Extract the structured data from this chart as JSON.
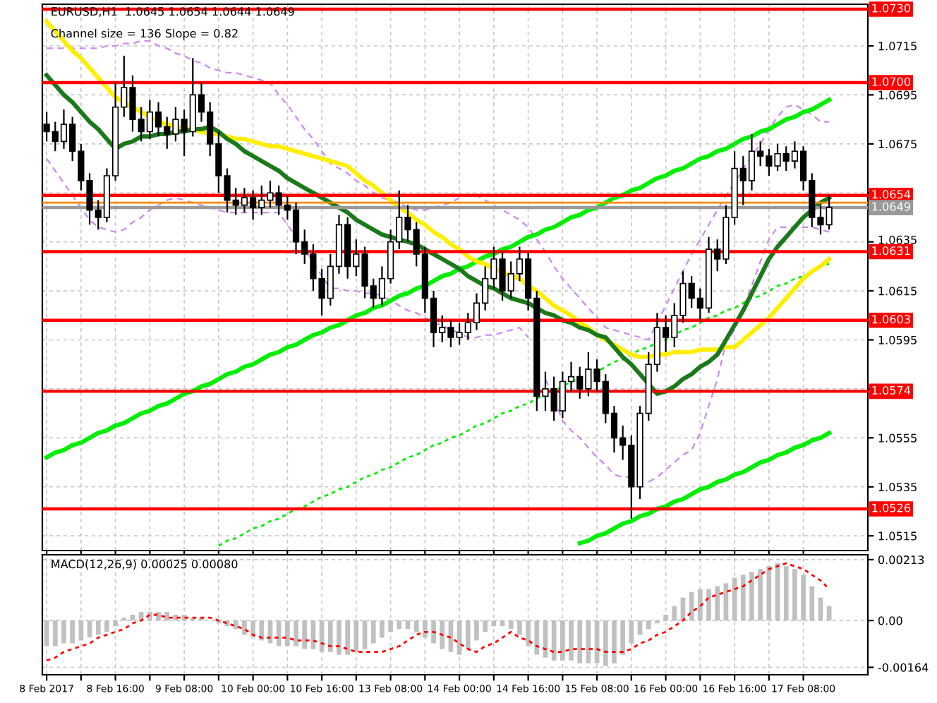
{
  "chart_data": [
    {
      "type": "candlestick",
      "title": "EURUSD,H1  1.0645 1.0654 1.0644 1.0649",
      "annotations": [
        "Channel size = 136 Slope = 0.82"
      ],
      "categories": [
        null,
        null,
        null,
        null,
        null,
        null,
        null,
        null,
        null,
        null,
        null,
        null,
        null,
        null,
        null,
        null,
        null,
        null,
        null,
        null,
        null,
        null,
        null,
        null,
        null,
        null,
        null,
        null,
        null,
        null,
        null,
        null,
        null,
        null,
        null,
        null,
        null,
        null,
        null,
        null,
        null,
        null,
        null,
        null,
        null,
        null,
        null,
        null,
        null,
        null,
        null,
        null,
        null,
        null,
        null,
        null,
        null,
        null,
        null,
        null,
        null,
        null,
        null,
        null,
        null,
        null,
        null,
        null,
        null,
        null,
        null,
        null,
        null,
        null,
        null,
        null,
        null,
        null,
        null,
        null,
        null,
        null,
        null,
        null,
        null,
        null,
        null,
        null,
        null,
        null,
        null,
        null
      ],
      "ohlc": [
        [
          1.0683,
          1.0688,
          1.0676,
          1.068
        ],
        [
          1.068,
          1.0684,
          1.0672,
          1.0676
        ],
        [
          1.0676,
          1.0689,
          1.0673,
          1.0683
        ],
        [
          1.0683,
          1.0686,
          1.0668,
          1.0672
        ],
        [
          1.0672,
          1.0675,
          1.0656,
          1.066
        ],
        [
          1.066,
          1.0663,
          1.0642,
          1.0648
        ],
        [
          1.0648,
          1.0652,
          1.064,
          1.0645
        ],
        [
          1.0645,
          1.0665,
          1.0643,
          1.0662
        ],
        [
          1.0662,
          1.07,
          1.066,
          1.069
        ],
        [
          1.069,
          1.0711,
          1.0686,
          1.0698
        ],
        [
          1.0698,
          1.0703,
          1.068,
          1.0685
        ],
        [
          1.0685,
          1.069,
          1.0676,
          1.068
        ],
        [
          1.068,
          1.0693,
          1.0677,
          1.0688
        ],
        [
          1.0688,
          1.0692,
          1.0678,
          1.0682
        ],
        [
          1.0682,
          1.0686,
          1.0673,
          1.0679
        ],
        [
          1.0679,
          1.069,
          1.0676,
          1.0685
        ],
        [
          1.0685,
          1.0689,
          1.067,
          1.068
        ],
        [
          1.068,
          1.071,
          1.0678,
          1.0695
        ],
        [
          1.0695,
          1.07,
          1.0684,
          1.0688
        ],
        [
          1.0688,
          1.0692,
          1.067,
          1.0675
        ],
        [
          1.0675,
          1.068,
          1.0655,
          1.0662
        ],
        [
          1.0662,
          1.0665,
          1.0647,
          1.0652
        ],
        [
          1.0652,
          1.0657,
          1.0646,
          1.065
        ],
        [
          1.065,
          1.0657,
          1.0647,
          1.0653
        ],
        [
          1.0653,
          1.0656,
          1.0644,
          1.0649
        ],
        [
          1.0649,
          1.0658,
          1.0646,
          1.0652
        ],
        [
          1.0652,
          1.066,
          1.0649,
          1.0655
        ],
        [
          1.0655,
          1.0658,
          1.0646,
          1.065
        ],
        [
          1.065,
          1.0654,
          1.0644,
          1.0648
        ],
        [
          1.0648,
          1.0651,
          1.063,
          1.0635
        ],
        [
          1.0635,
          1.064,
          1.0626,
          1.063
        ],
        [
          1.063,
          1.0634,
          1.0615,
          1.062
        ],
        [
          1.062,
          1.0624,
          1.0605,
          1.0612
        ],
        [
          1.0612,
          1.063,
          1.0609,
          1.0625
        ],
        [
          1.0625,
          1.0646,
          1.0622,
          1.0642
        ],
        [
          1.0642,
          1.0645,
          1.062,
          1.0625
        ],
        [
          1.0625,
          1.0636,
          1.0621,
          1.063
        ],
        [
          1.063,
          1.0633,
          1.0612,
          1.0617
        ],
        [
          1.0617,
          1.062,
          1.0608,
          1.0612
        ],
        [
          1.0612,
          1.0625,
          1.0609,
          1.062
        ],
        [
          1.062,
          1.064,
          1.0618,
          1.0635
        ],
        [
          1.0635,
          1.0656,
          1.0632,
          1.0645
        ],
        [
          1.0645,
          1.065,
          1.0635,
          1.064
        ],
        [
          1.064,
          1.0643,
          1.0625,
          1.063
        ],
        [
          1.063,
          1.0633,
          1.0606,
          1.0612
        ],
        [
          1.0612,
          1.0615,
          1.0592,
          1.0598
        ],
        [
          1.0598,
          1.0605,
          1.0594,
          1.06
        ],
        [
          1.06,
          1.0603,
          1.0592,
          1.0596
        ],
        [
          1.0596,
          1.0602,
          1.0593,
          1.0598
        ],
        [
          1.0598,
          1.0606,
          1.0595,
          1.0602
        ],
        [
          1.0602,
          1.0614,
          1.0599,
          1.061
        ],
        [
          1.061,
          1.0625,
          1.0607,
          1.062
        ],
        [
          1.062,
          1.0633,
          1.0616,
          1.0628
        ],
        [
          1.0628,
          1.0631,
          1.0611,
          1.0615
        ],
        [
          1.0615,
          1.0627,
          1.0612,
          1.0622
        ],
        [
          1.0622,
          1.0633,
          1.0619,
          1.0628
        ],
        [
          1.0628,
          1.0631,
          1.0607,
          1.0612
        ],
        [
          1.0612,
          1.0615,
          1.0566,
          1.0572
        ],
        [
          1.0572,
          1.0582,
          1.0566,
          1.0575
        ],
        [
          1.0575,
          1.058,
          1.0562,
          1.0566
        ],
        [
          1.0566,
          1.0582,
          1.0563,
          1.0578
        ],
        [
          1.0578,
          1.0586,
          1.0574,
          1.058
        ],
        [
          1.058,
          1.0584,
          1.0571,
          1.0575
        ],
        [
          1.0575,
          1.059,
          1.0572,
          1.0583
        ],
        [
          1.0583,
          1.0587,
          1.0574,
          1.0578
        ],
        [
          1.0578,
          1.0581,
          1.0561,
          1.0565
        ],
        [
          1.0565,
          1.0568,
          1.0549,
          1.0555
        ],
        [
          1.0555,
          1.056,
          1.0546,
          1.0552
        ],
        [
          1.0552,
          1.0556,
          1.0522,
          1.0535
        ],
        [
          1.0535,
          1.0568,
          1.053,
          1.0565
        ],
        [
          1.0565,
          1.059,
          1.0562,
          1.0585
        ],
        [
          1.0585,
          1.0606,
          1.0582,
          1.06
        ],
        [
          1.06,
          1.0605,
          1.059,
          1.0596
        ],
        [
          1.0596,
          1.061,
          1.0592,
          1.0605
        ],
        [
          1.0605,
          1.0623,
          1.0602,
          1.0618
        ],
        [
          1.0618,
          1.0621,
          1.0608,
          1.0612
        ],
        [
          1.0612,
          1.0616,
          1.0603,
          1.0608
        ],
        [
          1.0608,
          1.0637,
          1.0606,
          1.0632
        ],
        [
          1.0632,
          1.0636,
          1.0623,
          1.0628
        ],
        [
          1.0628,
          1.065,
          1.0626,
          1.0645
        ],
        [
          1.0645,
          1.0672,
          1.0642,
          1.0665
        ],
        [
          1.0665,
          1.067,
          1.065,
          1.066
        ],
        [
          1.066,
          1.0679,
          1.0656,
          1.0672
        ],
        [
          1.0672,
          1.0676,
          1.0666,
          1.067
        ],
        [
          1.067,
          1.0673,
          1.0662,
          1.0666
        ],
        [
          1.0666,
          1.0675,
          1.0664,
          1.0671
        ],
        [
          1.0671,
          1.0674,
          1.0664,
          1.0668
        ],
        [
          1.0668,
          1.0676,
          1.0665,
          1.0672
        ],
        [
          1.0672,
          1.0674,
          1.0656,
          1.066
        ],
        [
          1.066,
          1.0663,
          1.0641,
          1.0645
        ],
        [
          1.0645,
          1.065,
          1.0638,
          1.0642
        ],
        [
          1.0642,
          1.0654,
          1.064,
          1.0649
        ]
      ],
      "series": [
        {
          "type": "line",
          "color": "#cc88ee",
          "line_style": "dashed",
          "values": [
            1.0714,
            1.0714,
            1.0714,
            1.0714,
            1.0714,
            1.0714,
            1.0714,
            1.0715,
            1.0715,
            1.0716,
            1.0716,
            1.0717,
            1.0717,
            1.0715,
            1.0714,
            1.0712,
            1.0711,
            1.0709,
            1.0708,
            1.0706,
            1.0705,
            1.0704,
            1.0704,
            1.0703,
            1.0702,
            1.0701,
            1.07,
            1.0695,
            1.0691,
            1.0686,
            1.0681,
            1.0677,
            1.0672,
            1.0667,
            1.0665,
            1.0663,
            1.066,
            1.0658,
            1.0655,
            1.0653,
            1.0652,
            1.0651,
            1.0649,
            1.0648,
            1.0648,
            1.0649,
            1.065,
            1.0651,
            1.0653,
            1.0654,
            1.0654,
            1.0652,
            1.065,
            1.0648,
            1.0646,
            1.0644,
            1.0641,
            1.0636,
            1.0631,
            1.0625,
            1.062,
            1.0616,
            1.0612,
            1.0608,
            1.0604,
            1.06,
            1.0599,
            1.0598,
            1.0597,
            1.0596,
            1.0595,
            1.0602,
            1.0609,
            1.0616,
            1.0623,
            1.063,
            1.0636,
            1.0642,
            1.0648,
            1.0654,
            1.0659,
            1.0665,
            1.067,
            1.0675,
            1.0681,
            1.0686,
            1.069,
            1.0691,
            1.0689,
            1.0687,
            1.0684,
            1.0684
          ]
        },
        {
          "type": "line",
          "color": "#cc88ee",
          "line_style": "dashed",
          "values": [
            1.0669,
            1.0664,
            1.0659,
            1.0654,
            1.0649,
            1.0644,
            1.0641,
            1.064,
            1.0639,
            1.064,
            1.0643,
            1.0645,
            1.0648,
            1.065,
            1.0652,
            1.0653,
            1.0652,
            1.0651,
            1.065,
            1.0649,
            1.0648,
            1.0647,
            1.0647,
            1.0647,
            1.0647,
            1.0647,
            1.0647,
            1.0647,
            1.0642,
            1.0637,
            1.0632,
            1.0627,
            1.0621,
            1.0616,
            1.0616,
            1.0615,
            1.0615,
            1.0614,
            1.0614,
            1.0613,
            1.0611,
            1.0609,
            1.0607,
            1.0606,
            1.0604,
            1.0602,
            1.0601,
            1.0599,
            1.0598,
            1.0596,
            1.0596,
            1.0597,
            1.0597,
            1.0598,
            1.0599,
            1.06,
            1.0596,
            null,
            1.0579,
            1.0571,
            1.0562,
            1.0558,
            1.0555,
            1.0551,
            1.0547,
            1.0544,
            1.054,
            1.0539,
            1.0539,
            null,
            1.0537,
            1.0539,
            1.0542,
            1.0545,
            1.0548,
            1.055,
            1.0557,
            1.0568,
            1.0579,
            1.0594,
            1.0599,
            1.0608,
            1.0617,
            1.0627,
            1.0636,
            1.0641,
            1.0641,
            1.0641,
            1.0641,
            1.0641,
            1.064,
            1.0639
          ]
        },
        {
          "type": "line",
          "color": "#00ee00",
          "line_style": "solid",
          "values": [
            1.0547,
            1.0549,
            1.055,
            1.0552,
            1.0553,
            1.0555,
            1.0557,
            1.0558,
            1.056,
            1.0561,
            1.0563,
            1.0565,
            1.0566,
            1.0568,
            1.0569,
            1.0571,
            1.0573,
            1.0574,
            1.0576,
            1.0577,
            1.0579,
            1.0581,
            1.0582,
            1.0584,
            1.0585,
            1.0587,
            1.0589,
            1.059,
            1.0592,
            1.0593,
            1.0595,
            1.0597,
            1.0598,
            1.06,
            1.0601,
            1.0603,
            1.0605,
            1.0606,
            1.0608,
            1.0609,
            1.0611,
            1.0613,
            1.0614,
            1.0616,
            1.0617,
            1.0619,
            1.0621,
            1.0622,
            1.0624,
            1.0625,
            1.0627,
            1.0629,
            1.063,
            1.0632,
            1.0633,
            1.0635,
            1.0637,
            1.0638,
            1.064,
            1.0641,
            1.0643,
            1.0645,
            1.0646,
            1.0648,
            1.0649,
            1.0651,
            1.0653,
            1.0654,
            1.0656,
            1.0657,
            1.0659,
            1.0661,
            1.0662,
            1.0664,
            1.0665,
            1.0667,
            1.0669,
            1.067,
            1.0672,
            1.0673,
            1.0675,
            1.0677,
            1.0678,
            1.068,
            1.0681,
            1.0683,
            1.0685,
            1.0686,
            1.0688,
            1.0689,
            1.0691,
            1.0693
          ]
        },
        {
          "type": "line",
          "color": "#00ee00",
          "line_style": "dotted",
          "values": [
            null,
            null,
            null,
            null,
            null,
            null,
            null,
            null,
            null,
            null,
            null,
            null,
            null,
            null,
            null,
            null,
            null,
            null,
            null,
            null,
            1.0511,
            1.0513,
            1.0514,
            1.0516,
            1.0518,
            1.0519,
            1.0521,
            1.0522,
            1.0524,
            1.0526,
            1.0527,
            1.0529,
            1.0531,
            1.0532,
            1.0534,
            1.0535,
            1.0537,
            1.0539,
            1.054,
            1.0542,
            1.0543,
            1.0545,
            1.0547,
            1.0548,
            1.055,
            1.0552,
            1.0553,
            1.0555,
            1.0556,
            1.0558,
            1.056,
            1.0561,
            1.0563,
            1.0565,
            1.0566,
            1.0568,
            1.0569,
            1.0571,
            1.0573,
            1.0574,
            1.0576,
            1.0578,
            1.0579,
            1.0581,
            1.0582,
            1.0584,
            1.0586,
            1.0587,
            1.0589,
            1.0591,
            1.0592,
            1.0594,
            1.0595,
            1.0597,
            1.0599,
            1.06,
            1.0602,
            1.0604,
            1.0605,
            1.0607,
            1.0608,
            1.061,
            1.0612,
            1.0613,
            1.0615,
            1.0617,
            1.0618,
            1.062,
            1.0621,
            1.0623,
            1.0625,
            1.0626
          ]
        },
        {
          "type": "line",
          "color": "#00ee00",
          "line_style": "solid",
          "values": [
            null,
            null,
            null,
            null,
            null,
            null,
            null,
            null,
            null,
            null,
            null,
            null,
            null,
            null,
            null,
            null,
            null,
            null,
            null,
            null,
            null,
            null,
            null,
            null,
            null,
            null,
            null,
            null,
            null,
            null,
            null,
            null,
            null,
            null,
            null,
            null,
            null,
            null,
            null,
            null,
            null,
            null,
            null,
            null,
            null,
            null,
            null,
            null,
            null,
            null,
            null,
            null,
            null,
            null,
            null,
            null,
            null,
            null,
            null,
            null,
            null,
            null,
            1.0512,
            1.0513,
            1.0515,
            1.0516,
            1.0518,
            1.052,
            1.0521,
            1.0523,
            1.0524,
            1.0526,
            1.0527,
            1.0529,
            1.053,
            1.0532,
            1.0534,
            1.0535,
            1.0537,
            1.0538,
            1.054,
            1.0541,
            1.0543,
            1.0545,
            1.0546,
            1.0548,
            1.0549,
            1.0551,
            1.0552,
            1.0554,
            1.0555,
            1.0557
          ]
        },
        {
          "type": "line",
          "color": "#ffee00",
          "line_style": "solid",
          "values": [
            1.0725,
            1.0721,
            1.0717,
            1.0713,
            1.071,
            1.0706,
            1.0702,
            1.0698,
            1.0694,
            1.0692,
            1.069,
            1.0688,
            1.0686,
            1.0684,
            1.0683,
            1.0682,
            1.0681,
            1.0681,
            1.068,
            1.0679,
            1.0679,
            1.0678,
            1.0677,
            1.0677,
            1.0676,
            1.0675,
            1.0674,
            1.0674,
            1.0673,
            1.0672,
            1.0671,
            1.067,
            1.0669,
            1.0668,
            1.0667,
            1.0666,
            1.0663,
            1.066,
            1.0658,
            1.0655,
            1.0652,
            1.0649,
            1.0647,
            1.0644,
            1.0642,
            1.0639,
            1.0637,
            1.0634,
            1.0632,
            1.0629,
            1.0627,
            1.0626,
            1.0624,
            1.0623,
            1.0621,
            1.062,
            1.0617,
            1.0615,
            1.0612,
            1.0609,
            1.0607,
            1.0605,
            1.0602,
            1.06,
            1.0597,
            1.0595,
            1.0593,
            1.0591,
            1.0589,
            1.0588,
            1.0588,
            1.0589,
            1.0589,
            1.059,
            1.059,
            1.059,
            1.0591,
            1.0591,
            1.0591,
            1.0592,
            1.0592,
            1.0595,
            1.0598,
            1.0601,
            1.0604,
            1.0608,
            1.0612,
            1.0616,
            1.062,
            1.0623,
            1.0625,
            1.0628
          ]
        },
        {
          "type": "line",
          "color": "#1a7a1a",
          "line_style": "solid",
          "values": [
            1.0703,
            1.0699,
            1.0695,
            1.0692,
            1.0688,
            1.0684,
            1.0681,
            1.0677,
            1.0673,
            1.0675,
            1.0676,
            1.0678,
            1.0678,
            1.0679,
            1.0679,
            1.068,
            1.068,
            1.0681,
            1.0681,
            1.0682,
            1.068,
            1.0677,
            1.0675,
            1.0672,
            1.067,
            1.0668,
            1.0666,
            1.0664,
            1.0661,
            1.0659,
            1.0657,
            1.0655,
            1.0653,
            1.0651,
            1.0649,
            1.0647,
            1.0644,
            1.0642,
            1.064,
            1.0638,
            1.0637,
            1.0636,
            1.0635,
            1.0634,
            1.0632,
            1.063,
            1.0628,
            1.0626,
            1.0624,
            1.0621,
            1.0619,
            1.0617,
            1.0616,
            1.0614,
            1.0612,
            1.0611,
            1.061,
            1.0608,
            1.0606,
            1.0605,
            1.0603,
            1.0602,
            1.06,
            1.0599,
            1.0597,
            1.0596,
            1.0592,
            1.0588,
            1.0585,
            1.0581,
            1.0577,
            1.0573,
            1.0574,
            1.0576,
            1.0579,
            1.0581,
            1.0584,
            1.0586,
            1.0589,
            1.0595,
            1.0601,
            1.0607,
            1.0614,
            1.0621,
            1.0628,
            1.0633,
            1.0637,
            1.0641,
            1.0645,
            1.0648,
            1.0651,
            1.0653
          ]
        }
      ],
      "ylim": [
        1.0509,
        1.0732
      ],
      "yticks": [
        1.0515,
        1.0535,
        1.0555,
        {
          "value": 1.0575,
          "label": null
        },
        1.0595,
        1.0615,
        1.0635,
        {
          "value": 1.0655,
          "label": null
        },
        1.0675,
        1.0695,
        1.0715
      ],
      "ref_lines": [
        {
          "axis": "y",
          "value": 1.073,
          "label": "1.0730",
          "color": "#ff0000"
        },
        {
          "axis": "y",
          "value": 1.07,
          "label": "1.0700",
          "color": "#ff0000"
        },
        {
          "axis": "y",
          "value": 1.0654,
          "label": "1.0654",
          "color": "#ff0000"
        },
        {
          "axis": "y",
          "value": 1.0651,
          "color": "#ff8c00"
        },
        {
          "axis": "y",
          "value": 1.0649,
          "label": "1.0649",
          "color": "#999999"
        },
        {
          "axis": "y",
          "value": 1.0631,
          "label": "1.0631",
          "color": "#ff0000"
        },
        {
          "axis": "y",
          "value": 1.0603,
          "label": "1.0603",
          "color": "#ff0000"
        },
        {
          "axis": "y",
          "value": 1.0574,
          "label": "1.0574",
          "color": "#ff0000"
        },
        {
          "axis": "y",
          "value": 1.0526,
          "label": "1.0526",
          "color": "#ff0000"
        }
      ],
      "grid": true
    },
    {
      "type": "bar",
      "annotations": [
        "MACD(12,26,9) 0.00025 0.00080"
      ],
      "categories": [
        "8 Feb 2017",
        null,
        null,
        null,
        null,
        null,
        null,
        null,
        "8 Feb 16:00",
        null,
        null,
        null,
        null,
        null,
        null,
        null,
        "9 Feb 08:00",
        null,
        null,
        null,
        null,
        null,
        null,
        null,
        "10 Feb 00:00",
        null,
        null,
        null,
        null,
        null,
        null,
        null,
        "10 Feb 16:00",
        null,
        null,
        null,
        null,
        null,
        null,
        null,
        "13 Feb 08:00",
        null,
        null,
        null,
        null,
        null,
        null,
        null,
        "14 Feb 00:00",
        null,
        null,
        null,
        null,
        null,
        null,
        null,
        "14 Feb 16:00",
        null,
        null,
        null,
        null,
        null,
        null,
        null,
        "15 Feb 08:00",
        null,
        null,
        null,
        null,
        null,
        null,
        null,
        "16 Feb 00:00",
        null,
        null,
        null,
        null,
        null,
        null,
        null,
        "16 Feb 16:00",
        null,
        null,
        null,
        null,
        null,
        null,
        null,
        "17 Feb 08:00",
        null,
        null,
        null
      ],
      "series": [
        {
          "type": "bar",
          "color": "#c0c0c0",
          "values": [
            -0.0009,
            -0.0009,
            -0.0008,
            -0.0008,
            -0.0007,
            -0.0006,
            -0.0005,
            -0.0004,
            -0.0002,
            0.0001,
            0.0002,
            0.0003,
            0.0003,
            0.0003,
            0.0003,
            0.0002,
            0.0002,
            0.0001,
            0.0001,
            0,
            -0.0001,
            -0.0002,
            -0.0003,
            -0.0005,
            -0.0006,
            -0.0007,
            -0.0008,
            -0.0009,
            -0.0009,
            -0.0009,
            -0.001,
            -0.001,
            -0.0011,
            -0.0011,
            -0.0012,
            -0.0012,
            -0.0011,
            -0.001,
            -0.0008,
            -0.0006,
            -0.0004,
            -0.0003,
            -0.0003,
            -0.0004,
            -0.0006,
            -0.0008,
            -0.001,
            -0.0011,
            -0.0012,
            -0.001,
            -0.0007,
            -0.0004,
            -0.0002,
            -0.0002,
            -0.0003,
            -0.0005,
            -0.0009,
            -0.0012,
            -0.0013,
            -0.0014,
            -0.0014,
            -0.0014,
            -0.0015,
            -0.0015,
            -0.0015,
            -0.0016,
            -0.0015,
            -0.0012,
            -0.0008,
            -0.0005,
            -0.0003,
            -0.0001,
            0.0002,
            0.0005,
            0.0008,
            0.001,
            0.0011,
            0.0011,
            0.0012,
            0.0013,
            0.0015,
            0.0016,
            0.0017,
            0.0018,
            0.0019,
            0.002,
            0.0019,
            0.0018,
            0.0016,
            0.0012,
            0.0008,
            0.0005
          ]
        },
        {
          "type": "line",
          "color": "#ff0000",
          "line_style": "dotted",
          "values": [
            -0.0014,
            -0.0013,
            -0.0011,
            -0.001,
            -0.0009,
            -0.0008,
            -0.0006,
            -0.0005,
            -0.0004,
            -0.0003,
            -0.0001,
            0,
            0.0002,
            0.0002,
            0.0001,
            0.0001,
            0.0001,
            0.0001,
            0.0001,
            0.0001,
            0,
            -0.0001,
            -0.0002,
            -0.0003,
            -0.0005,
            -0.0006,
            -0.0006,
            -0.0006,
            -0.0006,
            -0.0007,
            -0.0007,
            -0.0007,
            -0.0008,
            -0.0009,
            -0.0009,
            -0.001,
            -0.0011,
            -0.0011,
            -0.0011,
            -0.0011,
            -0.001,
            -0.0009,
            -0.0007,
            -0.0005,
            -0.0004,
            -0.0004,
            -0.0005,
            -0.0006,
            -0.0008,
            -0.001,
            -0.0011,
            -0.0009,
            -0.0008,
            -0.0006,
            -0.0004,
            -0.0006,
            -0.0007,
            -0.0009,
            -0.001,
            -0.0011,
            -0.0011,
            -0.001,
            -0.001,
            -0.001,
            -0.001,
            -0.0011,
            -0.0011,
            -0.0011,
            -0.001,
            -0.0008,
            -0.0007,
            -0.0005,
            -0.0004,
            -0.0002,
            0,
            0.0003,
            0.0005,
            0.0008,
            0.0009,
            0.001,
            0.0011,
            0.0012,
            0.0014,
            0.0016,
            0.0018,
            0.0019,
            0.002,
            0.0019,
            0.0018,
            0.0016,
            0.0014,
            0.0011
          ]
        }
      ],
      "ylim": [
        -0.0019,
        0.0023
      ],
      "yticks": [
        -0.00164,
        {
          "value": 0,
          "label": "0.00"
        },
        0.00213
      ],
      "grid": true
    }
  ]
}
